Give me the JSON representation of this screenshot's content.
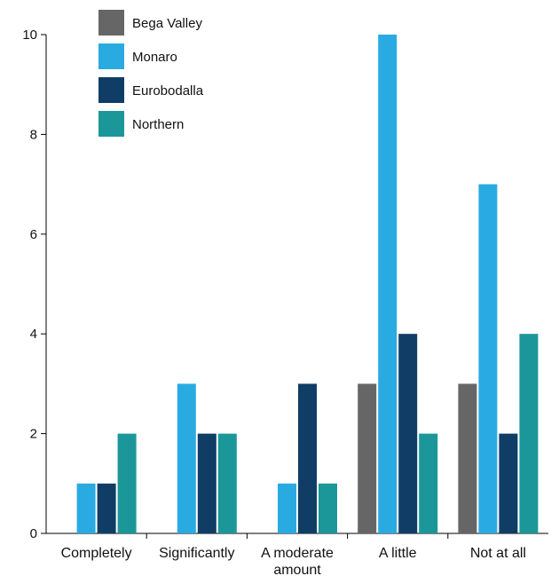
{
  "chart_data": {
    "type": "bar",
    "categories": [
      "Completely",
      "Significantly",
      "A moderate amount",
      "A little",
      "Not at all"
    ],
    "series": [
      {
        "name": "Bega Valley",
        "color": "#666666",
        "values": [
          0,
          0,
          0,
          3,
          3
        ]
      },
      {
        "name": "Monaro",
        "color": "#29abe2",
        "values": [
          1,
          3,
          1,
          10,
          7
        ]
      },
      {
        "name": "Eurobodalla",
        "color": "#0f3d66",
        "values": [
          1,
          2,
          3,
          4,
          2
        ]
      },
      {
        "name": "Northern",
        "color": "#1b9799",
        "values": [
          2,
          2,
          1,
          2,
          4
        ]
      }
    ],
    "yticks": [
      0,
      2,
      4,
      6,
      8,
      10
    ],
    "ylim": [
      0,
      10
    ],
    "title": "",
    "xlabel": "",
    "ylabel": "",
    "legend": "top-left",
    "grid": false
  }
}
